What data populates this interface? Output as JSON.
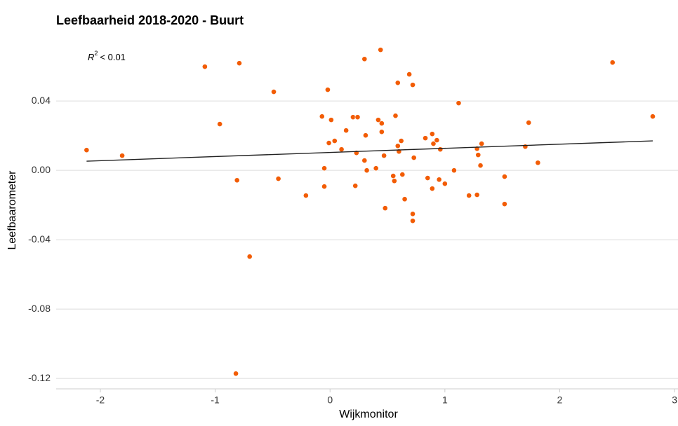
{
  "chart_data": {
    "type": "scatter",
    "title": "Leefbaarheid 2018-2020 - Buurt",
    "x_label": "Wijkmonitor",
    "y_label": "Leefbaarometer",
    "annotation": {
      "symbol": "R",
      "power": "2",
      "text": "< 0.01"
    },
    "color": "#f25c05",
    "line_color": "#222222",
    "grid": true,
    "xlim": [
      -2.385,
      3.03
    ],
    "ylim": [
      -0.126,
      0.074
    ],
    "xticks": [
      -2,
      -1,
      0,
      1,
      2,
      3
    ],
    "yticks": [
      0.04,
      {
        "value": 0,
        "label": "0.00"
      },
      -0.04,
      -0.08,
      -0.12
    ],
    "series": [
      {
        "name": null,
        "x": [
          -2.12,
          -1.81,
          -1.09,
          -0.79,
          -0.96,
          -0.81,
          -0.7,
          -0.82,
          -0.49,
          -0.45,
          -0.21,
          -0.02,
          -0.07,
          0.01,
          -0.01,
          0.04,
          -0.05,
          -0.05,
          0.1,
          0.14,
          0.2,
          0.24,
          0.23,
          0.22,
          0.3,
          0.31,
          0.3,
          0.32,
          0.4,
          0.44,
          0.42,
          0.45,
          0.45,
          0.47,
          0.48,
          0.55,
          0.56,
          0.57,
          0.59,
          0.59,
          0.6,
          0.62,
          0.63,
          0.65,
          0.69,
          0.72,
          0.73,
          0.72,
          0.72,
          0.83,
          0.85,
          0.89,
          0.9,
          0.93,
          0.89,
          0.95,
          0.96,
          1.0,
          1.08,
          1.12,
          1.21,
          1.28,
          1.28,
          1.29,
          1.32,
          1.31,
          1.52,
          1.52,
          1.7,
          1.73,
          1.81,
          2.46,
          2.81
        ],
        "values": [
          0.0117,
          0.0085,
          0.0598,
          0.0618,
          0.0267,
          -0.0057,
          -0.0497,
          -0.1172,
          0.0453,
          -0.0048,
          -0.0145,
          0.0465,
          0.0311,
          0.0291,
          0.0158,
          0.017,
          0.0012,
          -0.0093,
          0.0121,
          0.023,
          0.0307,
          0.0307,
          0.0101,
          -0.0089,
          0.0642,
          0.0202,
          0.0057,
          0.0,
          0.0012,
          0.0695,
          0.0291,
          0.0271,
          0.0222,
          0.0085,
          -0.0218,
          -0.0032,
          -0.0061,
          0.0315,
          0.0505,
          0.0141,
          0.0109,
          0.017,
          -0.0024,
          -0.0166,
          0.0554,
          0.0493,
          0.0073,
          -0.0251,
          -0.0291,
          0.0186,
          -0.0044,
          0.021,
          0.0154,
          0.0174,
          -0.0105,
          -0.0053,
          0.0121,
          -0.0077,
          0.0,
          0.0388,
          -0.0145,
          -0.0141,
          0.0125,
          0.0089,
          0.0154,
          0.0028,
          -0.0036,
          -0.0194,
          0.0137,
          0.0275,
          0.0044,
          0.0622,
          0.0311
        ]
      }
    ],
    "trend": {
      "x": [
        -2.12,
        2.81
      ],
      "values": [
        0.0053,
        0.017
      ]
    }
  }
}
